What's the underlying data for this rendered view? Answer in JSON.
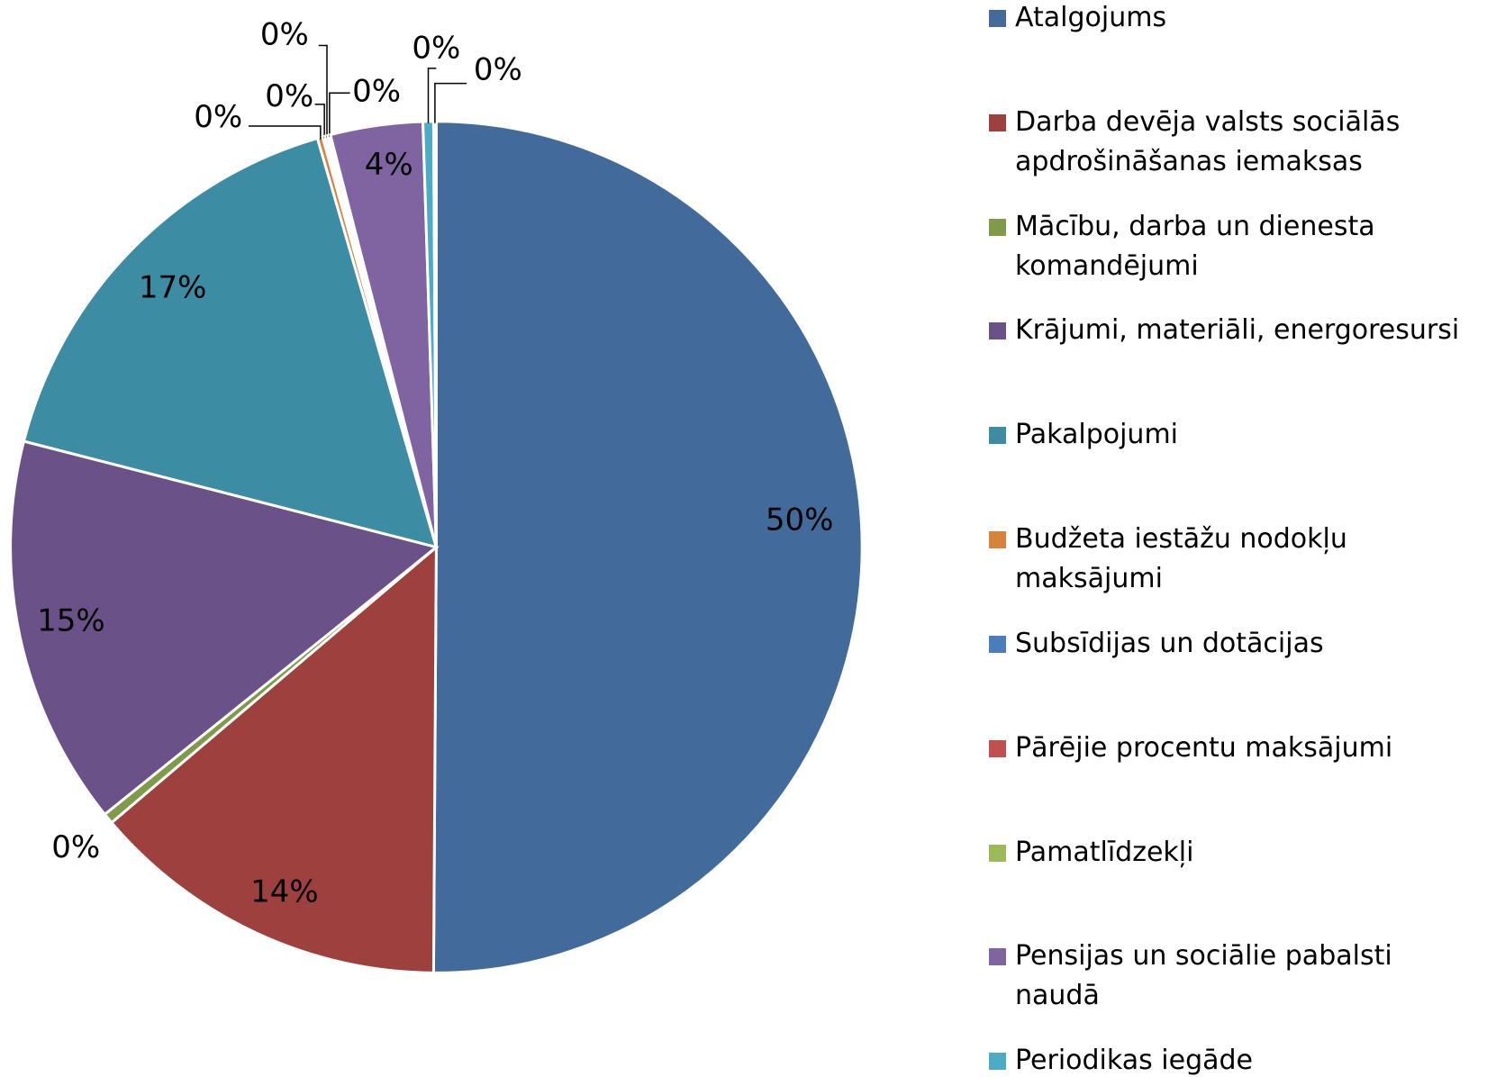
{
  "chart_data": {
    "type": "pie",
    "categories": [
      "Atalgojums",
      "Darba devēja valsts sociālās apdrošināšanas  iemaksas",
      "Mācību, darba un dienesta komandējumi",
      "Krājumi, materiāli, energoresursi",
      "Pakalpojumi",
      "Budžeta iestāžu nodokļu maksājumi",
      "Subsīdijas un dotācijas",
      "Pārējie procentu maksājumi",
      "Pamatlīdzekļi",
      "Pensijas un sociālie pabalsti naudā",
      "Periodikas iegāde",
      null
    ],
    "values": [
      50.1,
      13.7,
      0.4,
      14.8,
      16.5,
      0.2,
      0.1,
      0.1,
      0.1,
      3.5,
      0.4,
      0.1
    ],
    "value_labels": [
      "50%",
      "14%",
      "0%",
      "15%",
      "17%",
      "0%",
      "0%",
      "0%",
      "0%",
      "4%",
      "0%",
      "0%"
    ],
    "colors": [
      "#426a9b",
      "#9e413e",
      "#7f9a48",
      "#6a5187",
      "#3c8da3",
      "#d9823b",
      "#4a7ebb",
      "#c0504d",
      "#9bbb59",
      "#8064a2",
      "#4bacc6",
      "#f79646"
    ]
  }
}
